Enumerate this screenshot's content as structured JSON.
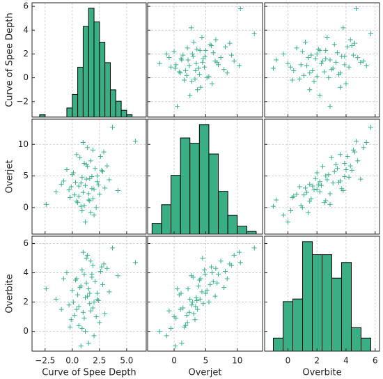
{
  "chart_data": {
    "type": "pairplot",
    "color": "#3aaf85",
    "edge_color": "#000000",
    "grid": true,
    "variables": [
      {
        "name": "Curve of Spee Depth",
        "values": [
          1.2,
          0.4,
          2.1,
          -0.3,
          1.8,
          0.9,
          2.6,
          1.5,
          0.1,
          3.0,
          1.1,
          -0.8,
          1.7,
          0.6,
          2.3,
          1.4,
          -1.5,
          0.8,
          2.0,
          1.3,
          0.2,
          3.4,
          1.0,
          1.9,
          -0.1,
          2.7,
          0.5,
          1.6,
          4.2,
          0.7,
          1.2,
          2.4,
          -0.5,
          1.5,
          0.3,
          2.9,
          1.0,
          2.2,
          0.0,
          1.8,
          5.8,
          1.4,
          -2.4,
          0.9,
          2.5,
          1.1,
          3.7,
          0.6,
          1.7,
          -0.2,
          2.8,
          1.3,
          0.4,
          2.0,
          1.6,
          -1.0,
          3.2,
          0.8,
          2.3,
          1.9
        ],
        "xlim": [
          -3.7,
          6.8
        ],
        "xticks": [
          {
            "value": -2.5,
            "label": "−2.5"
          },
          {
            "value": 0,
            "label": "0.0"
          },
          {
            "value": 2.5,
            "label": "2.5"
          },
          {
            "value": 5,
            "label": "5.0"
          }
        ],
        "ylim": [
          -3.3,
          6.3
        ],
        "yticks": [
          {
            "value": -2,
            "label": "−2"
          },
          0,
          2,
          4,
          6
        ],
        "hist": {
          "bins": [
            -3,
            -2.5,
            -2,
            -1.5,
            -1,
            -0.5,
            0,
            0.5,
            1,
            1.5,
            2,
            2.5,
            3,
            3.5,
            4,
            4.5,
            5,
            5.5
          ],
          "counts": [
            1,
            0,
            0,
            0,
            0,
            4,
            10,
            22,
            40,
            48,
            42,
            33,
            24,
            12,
            7,
            3,
            1
          ]
        }
      },
      {
        "name": "Overjet",
        "values": [
          3.5,
          1.0,
          6.2,
          2.8,
          4.9,
          -0.5,
          8.1,
          2.2,
          5.5,
          3.1,
          0.3,
          4.2,
          7.4,
          1.8,
          5.0,
          9.5,
          2.5,
          3.9,
          -1.2,
          6.8,
          2.0,
          4.4,
          10.3,
          1.4,
          3.3,
          5.9,
          0.8,
          4.6,
          2.7,
          7.9,
          -2.3,
          3.6,
          6.0,
          1.2,
          4.0,
          8.8,
          2.4,
          0.0,
          5.2,
          3.0,
          10.5,
          6.5,
          0.5,
          4.8,
          2.1,
          7.0,
          12.7,
          3.4,
          -0.8,
          1.6,
          5.7,
          4.5,
          8.4,
          2.9,
          1.1,
          3.7,
          6.6,
          0.2,
          4.1,
          9.1
        ],
        "xlim": [
          -4.2,
          14
        ],
        "xticks": [
          0,
          5,
          10
        ],
        "ylim": [
          -4.2,
          14
        ],
        "yticks": [
          0,
          5,
          10
        ],
        "hist": {
          "bins": [
            -3.5,
            -2,
            -0.5,
            1,
            2.5,
            4,
            5.5,
            7,
            8.5,
            10,
            11.5,
            13
          ],
          "counts": [
            4,
            11,
            22,
            36,
            34,
            41,
            30,
            16,
            7,
            3,
            1
          ]
        }
      },
      {
        "name": "Overbite",
        "values": [
          2.3,
          1.5,
          3.4,
          1.8,
          3.9,
          0.2,
          4.1,
          2.9,
          2.0,
          1.2,
          0.9,
          3.6,
          4.8,
          0.4,
          2.6,
          5.2,
          2.2,
          3.1,
          -0.3,
          3.3,
          1.1,
          2.7,
          5.4,
          1.6,
          0.8,
          4.4,
          2.5,
          1.9,
          3.8,
          3.0,
          0.0,
          2.1,
          4.0,
          -0.8,
          3.5,
          4.6,
          1.3,
          1.0,
          2.8,
          3.7,
          4.7,
          2.4,
          2.9,
          4.2,
          0.6,
          3.9,
          5.7,
          1.7,
          1.4,
          0.3,
          3.2,
          5.0,
          3.6,
          2.0,
          2.6,
          1.5,
          4.3,
          -1.0,
          2.2,
          4.5
        ],
        "xlim": [
          -1.6,
          6.3
        ],
        "xticks": [
          0,
          2,
          4,
          6
        ],
        "ylim": [
          -1.35,
          6.5
        ],
        "yticks": [
          0,
          2,
          4,
          6
        ],
        "hist": {
          "bins": [
            -1.0,
            -0.33,
            0.34,
            1.01,
            1.68,
            2.35,
            3.02,
            3.69,
            4.36,
            5.03,
            5.7
          ],
          "counts": [
            5,
            19,
            20,
            42,
            37,
            37,
            28,
            34,
            9,
            5
          ]
        }
      }
    ]
  }
}
